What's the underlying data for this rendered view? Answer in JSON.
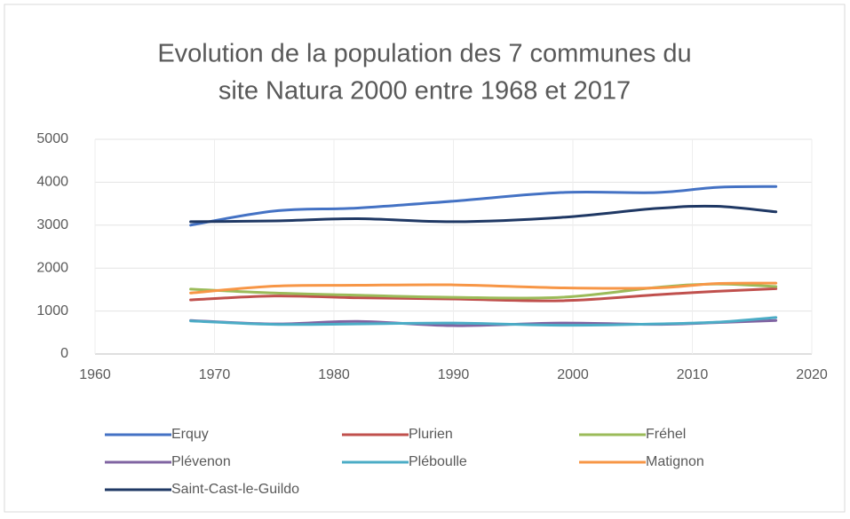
{
  "chart_data": {
    "type": "line",
    "title": [
      "Evolution de la population des 7 communes du",
      "site Natura 2000 entre 1968 et 2017"
    ],
    "x": [
      1968,
      1975,
      1982,
      1990,
      1999,
      2007,
      2012,
      2017
    ],
    "xlim": [
      1960,
      2020
    ],
    "xticks": [
      1960,
      1970,
      1980,
      1990,
      2000,
      2010,
      2020
    ],
    "ylim": [
      0,
      5000
    ],
    "yticks": [
      0,
      1000,
      2000,
      3000,
      4000,
      5000
    ],
    "grid": true,
    "smooth": true,
    "legend": "bottom",
    "series": [
      {
        "name": "Erquy",
        "color": "#4472c4",
        "values": [
          3000,
          3330,
          3400,
          3560,
          3760,
          3760,
          3880,
          3900
        ]
      },
      {
        "name": "Plurien",
        "color": "#c0504d",
        "values": [
          1260,
          1350,
          1310,
          1280,
          1240,
          1380,
          1460,
          1520
        ]
      },
      {
        "name": "Fréhel",
        "color": "#9bbb59",
        "values": [
          1510,
          1420,
          1370,
          1320,
          1320,
          1550,
          1630,
          1570
        ]
      },
      {
        "name": "Plévenon",
        "color": "#8064a2",
        "values": [
          780,
          700,
          760,
          660,
          720,
          690,
          730,
          780
        ]
      },
      {
        "name": "Pléboulle",
        "color": "#4bacc6",
        "values": [
          770,
          690,
          700,
          720,
          670,
          700,
          740,
          850
        ]
      },
      {
        "name": "Matignon",
        "color": "#f79646",
        "values": [
          1420,
          1580,
          1600,
          1610,
          1540,
          1540,
          1640,
          1650
        ]
      },
      {
        "name": "Saint-Cast-le-Guildo",
        "color": "#1f3864",
        "values": [
          3080,
          3100,
          3150,
          3080,
          3180,
          3390,
          3440,
          3310
        ]
      }
    ]
  }
}
